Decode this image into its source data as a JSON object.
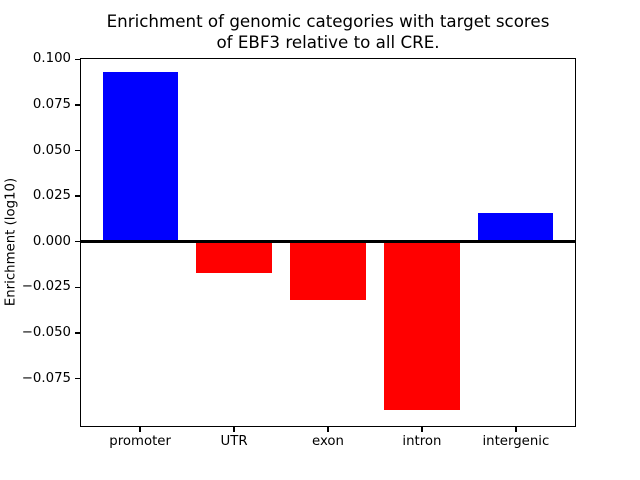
{
  "figure": {
    "title_line1": "Enrichment of genomic categories with target scores",
    "title_line2": "of EBF3 relative to all CRE.",
    "ylabel": "Enrichment (log10)"
  },
  "chart_data": {
    "type": "bar",
    "title": "Enrichment of genomic categories with target scores of EBF3 relative to all CRE.",
    "xlabel": "",
    "ylabel": "Enrichment (log10)",
    "categories": [
      "promoter",
      "UTR",
      "exon",
      "intron",
      "intergenic"
    ],
    "values": [
      0.093,
      -0.017,
      -0.032,
      -0.092,
      0.016
    ],
    "bar_colors": [
      "#0000ff",
      "#ff0000",
      "#ff0000",
      "#ff0000",
      "#0000ff"
    ],
    "positive_color": "#0000ff",
    "negative_color": "#ff0000",
    "bar_width": 0.8,
    "ylim": [
      -0.1016,
      0.1009
    ],
    "xlim": [
      -0.64,
      4.64
    ],
    "yticks": [
      {
        "value": 0.1,
        "label": "0.100"
      },
      {
        "value": 0.075,
        "label": "0.075"
      },
      {
        "value": 0.05,
        "label": "0.050"
      },
      {
        "value": 0.025,
        "label": "0.025"
      },
      {
        "value": 0.0,
        "label": "0.000"
      },
      {
        "value": -0.025,
        "label": "−0.025"
      },
      {
        "value": -0.05,
        "label": "−0.050"
      },
      {
        "value": -0.075,
        "label": "−0.075"
      }
    ],
    "grid": false,
    "legend": null,
    "zero_line": true,
    "axis_color": "#000000",
    "background_color": "#ffffff"
  }
}
